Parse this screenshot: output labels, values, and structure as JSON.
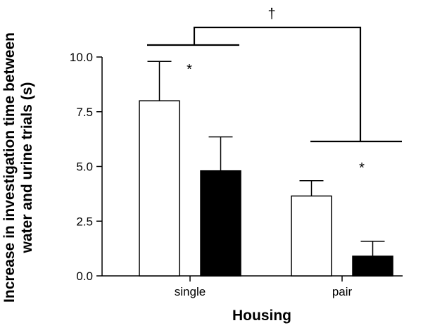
{
  "chart_data": {
    "type": "bar",
    "title": "",
    "xlabel": "Housing",
    "ylabel_lines": [
      "Increase in investigation time between",
      "water and urine trials (s)"
    ],
    "ylim": [
      0,
      10
    ],
    "yticks": [
      "0.0",
      "2.5",
      "5.0",
      "7.5",
      "10.0"
    ],
    "categories": [
      "single",
      "pair"
    ],
    "series": [
      {
        "fill": "#ffffff",
        "values": [
          8.0,
          3.65
        ],
        "errors": [
          1.8,
          0.7
        ]
      },
      {
        "fill": "#000000",
        "values": [
          4.8,
          0.9
        ],
        "errors": [
          1.55,
          0.68
        ]
      }
    ],
    "annotations": {
      "significance_within": [
        "*",
        "*"
      ],
      "significance_between": "†"
    }
  }
}
